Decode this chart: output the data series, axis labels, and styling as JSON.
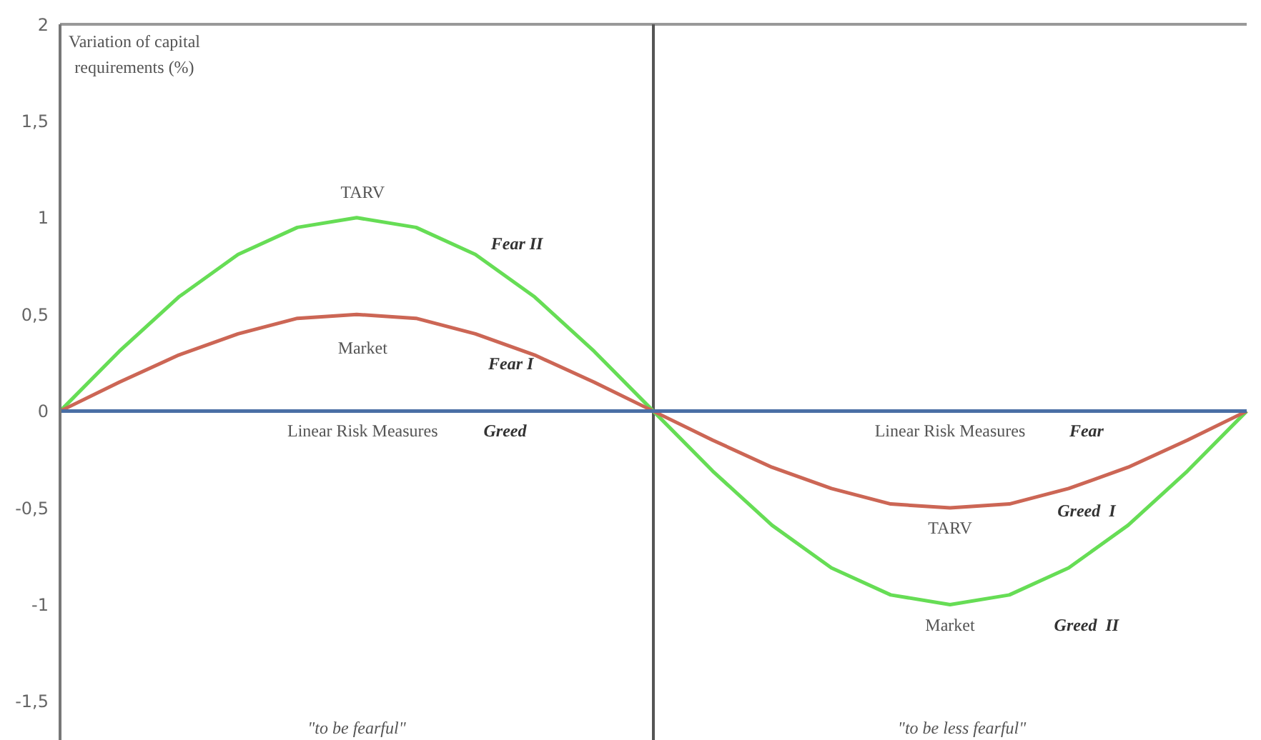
{
  "chart_data": {
    "type": "line",
    "ylabel": "Variation of capital requirements (%)",
    "categories": [
      null,
      null,
      null,
      null,
      null,
      null,
      null,
      null,
      null,
      null,
      null,
      null,
      null,
      null,
      null,
      null,
      null,
      null,
      null,
      null,
      null
    ],
    "series": [
      {
        "color": "#66dd55",
        "values": [
          0,
          0.31,
          0.59,
          0.81,
          0.95,
          1,
          0.95,
          0.81,
          0.59,
          0.31,
          0,
          -0.31,
          -0.59,
          -0.81,
          -0.95,
          -1,
          -0.95,
          -0.81,
          -0.59,
          -0.31,
          0
        ]
      },
      {
        "color": "#cc6655",
        "values": [
          0,
          0.15,
          0.29,
          0.4,
          0.48,
          0.5,
          0.48,
          0.4,
          0.29,
          0.15,
          0,
          -0.15,
          -0.29,
          -0.4,
          -0.48,
          -0.5,
          -0.48,
          -0.4,
          -0.29,
          -0.15,
          0
        ]
      },
      {
        "color": "#4a6fa5",
        "values": [
          0,
          0,
          0,
          0,
          0,
          0,
          0,
          0,
          0,
          0,
          0,
          0,
          0,
          0,
          0,
          0,
          0,
          0,
          0,
          0,
          0
        ]
      }
    ],
    "ylim": [
      -1.7,
      2
    ],
    "yticks": [
      {
        "value": -1.5,
        "label": "-1,5"
      },
      -1,
      {
        "value": -0.5,
        "label": "-0,5"
      },
      0,
      {
        "value": 0.5,
        "label": "0,5"
      },
      1,
      {
        "value": 1.5,
        "label": "1,5"
      },
      2
    ],
    "tick_labels": "y",
    "legend": false,
    "marker": "none",
    "line_style": "solid",
    "annotations": [
      "Fear II",
      "Fear I",
      "Greed",
      "Fear",
      "Greed  I",
      "Greed  II",
      "TARV",
      "Market",
      "Linear Risk Measures",
      "Linear Risk Measures",
      "TARV",
      "Market",
      "\"to be fearful\"",
      "\"to be less fearful\""
    ]
  }
}
